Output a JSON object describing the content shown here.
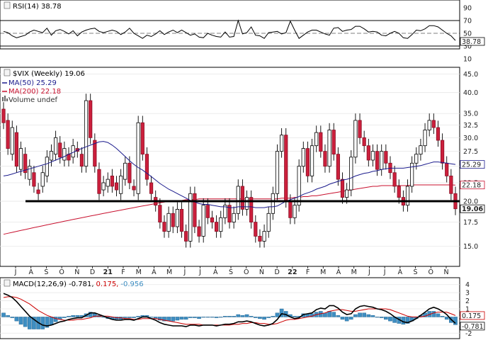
{
  "chart_data": [
    {
      "type": "line",
      "legend": [
        "RSI(14) 38.78"
      ],
      "series": [
        {
          "name": "RSI(14)",
          "values": [
            53,
            51,
            46,
            43,
            45,
            47,
            52,
            55,
            53,
            51,
            58,
            47,
            54,
            56,
            53,
            49,
            54,
            46,
            52,
            55,
            57,
            58,
            53,
            51,
            53,
            55,
            53,
            48,
            52,
            58,
            50,
            46,
            42,
            47,
            45,
            49,
            54,
            48,
            52,
            55,
            51,
            55,
            51,
            47,
            49,
            44,
            43,
            50,
            47,
            45,
            44,
            52,
            44,
            45,
            70,
            49,
            51,
            60,
            47,
            46,
            42,
            51,
            52,
            53,
            49,
            51,
            69,
            55,
            42,
            47,
            52,
            55,
            55,
            52,
            49,
            47,
            58,
            59,
            53,
            55,
            56,
            61,
            61,
            57,
            52,
            53,
            52,
            47,
            46,
            50,
            53,
            50,
            43,
            42,
            48,
            55,
            54,
            57,
            62,
            62,
            60,
            55,
            50,
            46,
            38.78
          ],
          "color": "#000000"
        }
      ],
      "yticks": [
        90,
        70,
        50,
        30,
        10
      ],
      "reference_lines": [
        70,
        50,
        30
      ],
      "ylim": [
        0,
        100
      ],
      "value_badge": "38.78"
    },
    {
      "type": "candlestick",
      "legend": [
        "$VIX (Weekly) 19.06",
        "MA(50) 25.29",
        "MA(200) 22.18",
        "Volume undef"
      ],
      "x_axis_labels": [
        "J",
        "A",
        "S",
        "O",
        "N",
        "D",
        "21",
        "F",
        "M",
        "A",
        "M",
        "J",
        "J",
        "A",
        "S",
        "O",
        "N",
        "D",
        "22",
        "F",
        "M",
        "A",
        "M",
        "J",
        "J",
        "A",
        "S",
        "O",
        "N"
      ],
      "yticks": [
        45.0,
        40.0,
        35.0,
        32.5,
        30.0,
        27.5,
        25.0,
        22.5,
        20.0,
        17.5,
        15.0
      ],
      "y_scale": "log",
      "ylim": [
        13.2,
        47
      ],
      "candles": [
        {
          "o": 36.0,
          "c": 33.0
        },
        {
          "o": 33.5,
          "c": 28.0
        },
        {
          "o": 27.0,
          "c": 32.0
        },
        {
          "o": 31.0,
          "c": 25.0
        },
        {
          "o": 24.5,
          "c": 28.0
        },
        {
          "o": 27.0,
          "c": 24.0
        },
        {
          "o": 23.0,
          "c": 25.0
        },
        {
          "o": 24.0,
          "c": 22.0
        },
        {
          "o": 21.5,
          "c": 21.0
        },
        {
          "o": 22.0,
          "c": 24.0
        },
        {
          "o": 23.5,
          "c": 26.5
        },
        {
          "o": 26.0,
          "c": 27.5
        },
        {
          "o": 27.0,
          "c": 30.0
        },
        {
          "o": 29.0,
          "c": 26.5
        },
        {
          "o": 26.0,
          "c": 28.0
        },
        {
          "o": 27.0,
          "c": 26.0
        },
        {
          "o": 26.5,
          "c": 28.5
        },
        {
          "o": 28.0,
          "c": 27.5
        },
        {
          "o": 27.0,
          "c": 25.0
        },
        {
          "o": 25.0,
          "c": 38.0
        },
        {
          "o": 38.0,
          "c": 30.0
        },
        {
          "o": 29.5,
          "c": 25.0
        },
        {
          "o": 24.5,
          "c": 21.0
        },
        {
          "o": 21.5,
          "c": 22.5
        },
        {
          "o": 22.0,
          "c": 23.0
        },
        {
          "o": 23.5,
          "c": 22.0
        },
        {
          "o": 22.5,
          "c": 21.5
        },
        {
          "o": 21.0,
          "c": 23.5
        },
        {
          "o": 23.0,
          "c": 25.5
        },
        {
          "o": 25.5,
          "c": 22.5
        },
        {
          "o": 22.0,
          "c": 21.5
        },
        {
          "o": 21.0,
          "c": 33.0
        },
        {
          "o": 33.0,
          "c": 27.0
        },
        {
          "o": 27.0,
          "c": 23.0
        },
        {
          "o": 22.5,
          "c": 21.0
        },
        {
          "o": 20.5,
          "c": 19.5
        },
        {
          "o": 19.5,
          "c": 17.5
        },
        {
          "o": 17.5,
          "c": 16.5
        },
        {
          "o": 16.5,
          "c": 18.5
        },
        {
          "o": 18.5,
          "c": 17.0
        },
        {
          "o": 17.0,
          "c": 19.0
        },
        {
          "o": 19.0,
          "c": 16.5
        },
        {
          "o": 16.5,
          "c": 15.5
        },
        {
          "o": 15.5,
          "c": 21.0
        },
        {
          "o": 21.0,
          "c": 17.0
        },
        {
          "o": 17.0,
          "c": 16.0
        },
        {
          "o": 16.0,
          "c": 19.5
        },
        {
          "o": 19.5,
          "c": 18.0
        },
        {
          "o": 18.0,
          "c": 17.5
        },
        {
          "o": 17.5,
          "c": 16.5
        },
        {
          "o": 16.5,
          "c": 18.0
        },
        {
          "o": 18.0,
          "c": 19.5
        },
        {
          "o": 19.5,
          "c": 17.5
        },
        {
          "o": 17.5,
          "c": 18.5
        },
        {
          "o": 18.5,
          "c": 22.0
        },
        {
          "o": 22.0,
          "c": 19.0
        },
        {
          "o": 19.0,
          "c": 20.5
        },
        {
          "o": 20.5,
          "c": 17.5
        },
        {
          "o": 17.5,
          "c": 16.0
        },
        {
          "o": 16.0,
          "c": 15.5
        },
        {
          "o": 15.5,
          "c": 16.5
        },
        {
          "o": 16.5,
          "c": 18.5
        },
        {
          "o": 18.5,
          "c": 21.0
        },
        {
          "o": 21.0,
          "c": 27.5
        },
        {
          "o": 27.5,
          "c": 30.5
        },
        {
          "o": 30.5,
          "c": 20.0
        },
        {
          "o": 20.0,
          "c": 18.0
        },
        {
          "o": 18.0,
          "c": 19.5
        },
        {
          "o": 19.5,
          "c": 25.0
        },
        {
          "o": 25.0,
          "c": 28.0
        },
        {
          "o": 28.0,
          "c": 23.5
        },
        {
          "o": 23.5,
          "c": 28.5
        },
        {
          "o": 28.5,
          "c": 31.0
        },
        {
          "o": 31.0,
          "c": 27.5
        },
        {
          "o": 27.5,
          "c": 25.0
        },
        {
          "o": 25.0,
          "c": 31.5
        },
        {
          "o": 31.5,
          "c": 27.0
        },
        {
          "o": 27.0,
          "c": 23.0
        },
        {
          "o": 23.0,
          "c": 20.5
        },
        {
          "o": 20.5,
          "c": 21.5
        },
        {
          "o": 21.5,
          "c": 26.5
        },
        {
          "o": 26.5,
          "c": 33.5
        },
        {
          "o": 33.5,
          "c": 30.0
        },
        {
          "o": 30.0,
          "c": 28.5
        },
        {
          "o": 28.5,
          "c": 26.0
        },
        {
          "o": 26.0,
          "c": 27.5
        },
        {
          "o": 27.5,
          "c": 24.5
        },
        {
          "o": 24.5,
          "c": 27.5
        },
        {
          "o": 27.5,
          "c": 25.5
        },
        {
          "o": 25.5,
          "c": 24.0
        },
        {
          "o": 24.0,
          "c": 22.0
        },
        {
          "o": 22.0,
          "c": 20.5
        },
        {
          "o": 20.5,
          "c": 19.5
        },
        {
          "o": 19.5,
          "c": 22.0
        },
        {
          "o": 22.0,
          "c": 25.5
        },
        {
          "o": 25.5,
          "c": 27.0
        },
        {
          "o": 27.0,
          "c": 28.5
        },
        {
          "o": 28.5,
          "c": 31.5
        },
        {
          "o": 31.5,
          "c": 33.5
        },
        {
          "o": 33.5,
          "c": 32.0
        },
        {
          "o": 32.0,
          "c": 29.5
        },
        {
          "o": 29.5,
          "c": 25.5
        },
        {
          "o": 25.5,
          "c": 23.5
        },
        {
          "o": 23.5,
          "c": 21.0
        },
        {
          "o": 21.0,
          "c": 19.06
        }
      ],
      "ma50": {
        "name": "MA(50)",
        "color": "#1a1a8c",
        "values": [
          23.5,
          23.6,
          23.8,
          24.0,
          24.2,
          24.4,
          24.6,
          24.8,
          25.0,
          25.2,
          25.4,
          25.7,
          26.0,
          26.3,
          26.6,
          27.0,
          27.3,
          27.7,
          28.0,
          28.3,
          28.6,
          28.9,
          29.2,
          29.3,
          29.1,
          28.6,
          28.0,
          27.3,
          26.6,
          25.9,
          25.3,
          24.8,
          24.4,
          23.9,
          23.4,
          22.9,
          22.4,
          22.0,
          21.6,
          21.3,
          21.0,
          20.7,
          20.4,
          20.1,
          19.9,
          19.7,
          19.6,
          19.6,
          19.5,
          19.4,
          19.3,
          19.3,
          19.2,
          19.2,
          19.3,
          19.3,
          19.3,
          19.3,
          19.2,
          19.2,
          19.2,
          19.3,
          19.3,
          19.4,
          19.7,
          20.0,
          20.2,
          20.4,
          20.6,
          20.9,
          21.1,
          21.3,
          21.6,
          21.8,
          22.0,
          22.3,
          22.5,
          22.7,
          22.9,
          23.0,
          23.2,
          23.5,
          23.7,
          23.9,
          24.0,
          24.2,
          24.3,
          24.5,
          24.6,
          24.7,
          24.7,
          24.7,
          24.7,
          24.8,
          24.9,
          25.0,
          25.1,
          25.3,
          25.5,
          25.7,
          25.7,
          25.6,
          25.5,
          25.4,
          25.29
        ]
      },
      "ma200": {
        "name": "MA(200)",
        "color": "#c8102e",
        "values": [
          16.2,
          16.3,
          16.4,
          16.5,
          16.6,
          16.7,
          16.8,
          16.9,
          17.0,
          17.1,
          17.2,
          17.3,
          17.4,
          17.5,
          17.6,
          17.7,
          17.8,
          17.9,
          18.0,
          18.1,
          18.2,
          18.3,
          18.4,
          18.5,
          18.6,
          18.7,
          18.8,
          18.9,
          19.0,
          19.1,
          19.2,
          19.3,
          19.4,
          19.5,
          19.6,
          19.7,
          19.8,
          19.9,
          20.0,
          20.0,
          20.1,
          20.1,
          20.2,
          20.2,
          20.2,
          20.3,
          20.3,
          20.3,
          20.3,
          20.3,
          20.3,
          20.3,
          20.3,
          20.3,
          20.3,
          20.3,
          20.3,
          20.3,
          20.3,
          20.3,
          20.3,
          20.3,
          20.3,
          20.3,
          20.4,
          20.4,
          20.4,
          20.5,
          20.5,
          20.6,
          20.6,
          20.7,
          20.7,
          20.8,
          20.9,
          21.0,
          21.1,
          21.2,
          21.3,
          21.4,
          21.5,
          21.6,
          21.7,
          21.8,
          21.9,
          22.0,
          22.0,
          22.1,
          22.1,
          22.1,
          22.1,
          22.1,
          22.1,
          22.1,
          22.2,
          22.2,
          22.2,
          22.2,
          22.2,
          22.2,
          22.2,
          22.2,
          22.2,
          22.2,
          22.18
        ]
      },
      "support_line": 20.0,
      "value_badges": [
        "25.29",
        "22.18",
        "19.06"
      ]
    },
    {
      "type": "line",
      "legend": [
        "MACD(12,26,9) -0.781,",
        "0.175,",
        "-0.956"
      ],
      "yticks": [
        4,
        3,
        2,
        1,
        0,
        -1,
        -2
      ],
      "ylim": [
        -2.5,
        4.5
      ],
      "series": [
        {
          "name": "MACD",
          "color": "#000000",
          "values": [
            2.9,
            2.7,
            2.4,
            1.9,
            1.3,
            0.7,
            0.1,
            -0.3,
            -0.7,
            -1.0,
            -1.1,
            -1.0,
            -0.8,
            -0.6,
            -0.5,
            -0.3,
            -0.2,
            -0.1,
            -0.1,
            0.2,
            0.5,
            0.5,
            0.3,
            0.1,
            -0.1,
            -0.3,
            -0.4,
            -0.4,
            -0.3,
            -0.3,
            -0.4,
            -0.2,
            0.0,
            0.0,
            -0.2,
            -0.4,
            -0.7,
            -0.9,
            -1.0,
            -1.1,
            -1.1,
            -1.1,
            -1.2,
            -1.0,
            -1.0,
            -1.1,
            -1.0,
            -1.0,
            -1.0,
            -1.1,
            -1.0,
            -0.9,
            -0.9,
            -0.8,
            -0.6,
            -0.6,
            -0.5,
            -0.6,
            -0.8,
            -1.0,
            -1.1,
            -1.0,
            -0.8,
            -0.3,
            0.4,
            0.3,
            0.0,
            -0.2,
            -0.1,
            0.3,
            0.4,
            0.5,
            0.9,
            1.1,
            1.0,
            1.4,
            1.4,
            1.1,
            0.6,
            0.3,
            0.4,
            1.0,
            1.3,
            1.4,
            1.3,
            1.2,
            1.0,
            0.9,
            0.7,
            0.4,
            0.0,
            -0.3,
            -0.6,
            -0.7,
            -0.5,
            -0.2,
            0.2,
            0.6,
            1.0,
            1.2,
            1.0,
            0.7,
            0.3,
            -0.3,
            -0.781
          ]
        },
        {
          "name": "Signal",
          "color": "#cc0000",
          "values": [
            2.4,
            2.5,
            2.5,
            2.4,
            2.2,
            1.9,
            1.6,
            1.2,
            0.8,
            0.5,
            0.2,
            0.0,
            -0.2,
            -0.3,
            -0.4,
            -0.4,
            -0.4,
            -0.3,
            -0.3,
            -0.2,
            -0.1,
            0.1,
            0.1,
            0.1,
            0.1,
            0.0,
            -0.1,
            -0.1,
            -0.2,
            -0.2,
            -0.3,
            -0.3,
            -0.2,
            -0.2,
            -0.2,
            -0.2,
            -0.3,
            -0.4,
            -0.5,
            -0.6,
            -0.7,
            -0.8,
            -0.9,
            -0.9,
            -0.9,
            -0.9,
            -1.0,
            -1.0,
            -1.0,
            -1.0,
            -1.0,
            -1.0,
            -1.0,
            -0.9,
            -0.9,
            -0.8,
            -0.8,
            -0.7,
            -0.7,
            -0.8,
            -0.8,
            -0.9,
            -0.9,
            -0.8,
            -0.6,
            -0.4,
            -0.3,
            -0.3,
            -0.2,
            -0.1,
            0.0,
            0.1,
            0.3,
            0.4,
            0.5,
            0.7,
            0.8,
            0.9,
            0.9,
            0.8,
            0.7,
            0.7,
            0.8,
            0.9,
            1.0,
            1.0,
            1.0,
            1.0,
            1.0,
            0.9,
            0.7,
            0.5,
            0.3,
            0.1,
            0.0,
            0.0,
            0.0,
            0.1,
            0.3,
            0.5,
            0.6,
            0.6,
            0.6,
            0.4,
            0.175
          ]
        },
        {
          "name": "Histogram",
          "color": "#3e8ec2",
          "values": [
            0.5,
            0.2,
            -0.1,
            -0.5,
            -0.9,
            -1.2,
            -1.5,
            -1.5,
            -1.5,
            -1.5,
            -1.3,
            -1.0,
            -0.6,
            -0.3,
            -0.1,
            0.1,
            0.2,
            0.2,
            0.2,
            0.4,
            0.6,
            0.4,
            0.2,
            0.0,
            -0.2,
            -0.3,
            -0.3,
            -0.3,
            -0.1,
            -0.1,
            -0.1,
            0.1,
            0.2,
            0.2,
            0.0,
            -0.2,
            -0.4,
            -0.5,
            -0.5,
            -0.5,
            -0.4,
            -0.3,
            -0.3,
            -0.1,
            -0.1,
            -0.2,
            0.0,
            0.0,
            0.0,
            -0.1,
            0.0,
            0.1,
            0.1,
            0.1,
            0.3,
            0.2,
            0.3,
            0.1,
            -0.1,
            -0.2,
            -0.3,
            -0.1,
            0.1,
            0.5,
            1.0,
            0.7,
            0.3,
            0.1,
            0.1,
            0.4,
            0.4,
            0.4,
            0.6,
            0.7,
            0.5,
            0.7,
            0.6,
            0.2,
            -0.3,
            -0.5,
            -0.3,
            0.3,
            0.5,
            0.5,
            0.3,
            0.2,
            0.0,
            -0.1,
            -0.3,
            -0.5,
            -0.7,
            -0.8,
            -0.9,
            -0.8,
            -0.5,
            -0.2,
            0.2,
            0.5,
            0.7,
            0.7,
            0.4,
            0.1,
            -0.3,
            -0.7,
            -0.956
          ]
        }
      ],
      "value_badges": [
        "0.175",
        "-0.781"
      ]
    }
  ]
}
